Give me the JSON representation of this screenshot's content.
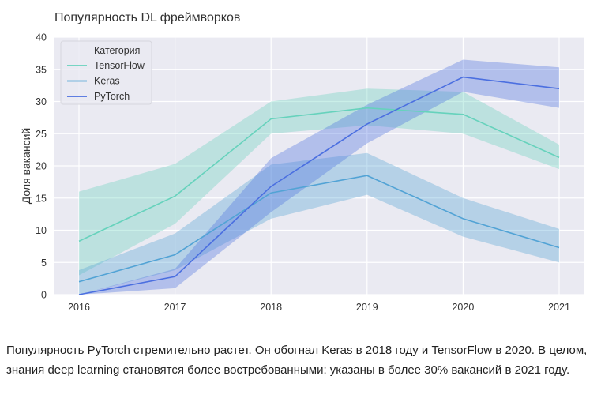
{
  "chart_data": {
    "type": "line",
    "title": "Популярность DL фреймворков",
    "xlabel": "",
    "ylabel": "Доля вакансий",
    "x": [
      2016,
      2017,
      2018,
      2019,
      2020,
      2021
    ],
    "ylim": [
      0,
      40
    ],
    "yticks": [
      0,
      5,
      10,
      15,
      20,
      25,
      30,
      35,
      40
    ],
    "grid": true,
    "background": "#eaeaf2",
    "legend": {
      "title": "Категория",
      "placement": "top-left"
    },
    "series": [
      {
        "name": "TensorFlow",
        "color": "#66d2bc",
        "values": [
          8.3,
          15.3,
          27.3,
          29.0,
          28.0,
          21.3
        ],
        "lower": [
          3.0,
          11.0,
          25.0,
          26.3,
          25.0,
          19.5
        ],
        "upper": [
          16.0,
          20.3,
          30.0,
          32.0,
          31.5,
          23.3
        ]
      },
      {
        "name": "Keras",
        "color": "#52a3d5",
        "values": [
          2.0,
          6.2,
          15.8,
          18.5,
          11.8,
          7.3
        ],
        "lower": [
          0.0,
          3.8,
          11.8,
          15.5,
          9.0,
          5.0
        ],
        "upper": [
          3.8,
          9.5,
          20.2,
          22.0,
          15.0,
          10.2
        ]
      },
      {
        "name": "PyTorch",
        "color": "#4b6fe0",
        "values": [
          0.0,
          2.8,
          16.8,
          26.5,
          33.8,
          32.0
        ],
        "lower": [
          0.0,
          1.0,
          12.8,
          23.5,
          31.5,
          29.0
        ],
        "upper": [
          0.0,
          4.0,
          21.2,
          29.5,
          36.5,
          35.3
        ]
      }
    ]
  },
  "caption": "Популярность PyTorch стремительно растет. Он обогнал Keras в 2018 году и TensorFlow в 2020. В целом, знания deep learning становятся более востребованными: указаны в более 30% вакансий в 2021 году."
}
